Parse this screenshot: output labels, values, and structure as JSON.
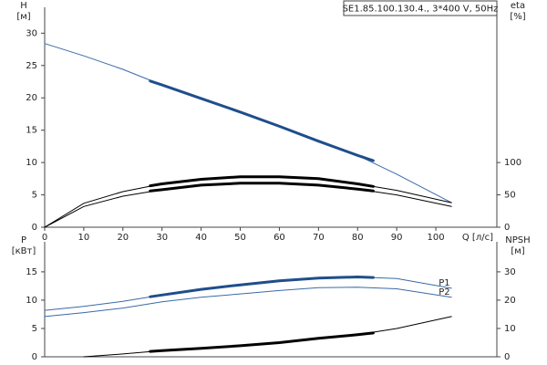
{
  "chart_data": [
    {
      "type": "line",
      "title": "SE1.85.100.130.4., 3*400 V, 50Hz",
      "xlabel": "Q [л/с]",
      "ylabel": "H",
      "ylabel_unit": "[м]",
      "y2label": "eta",
      "y2label_unit": "[%]",
      "xlim": [
        0,
        115.6
      ],
      "xticks": [
        0,
        10,
        20,
        30,
        40,
        50,
        60,
        70,
        80,
        90,
        100
      ],
      "ylim": [
        0,
        34
      ],
      "yticks": [
        0,
        5,
        10,
        15,
        20,
        25,
        30
      ],
      "y2lim": [
        0,
        340
      ],
      "y2ticks": [
        0,
        50,
        100
      ],
      "series": [
        {
          "color": "#3a6aa8",
          "line_width": 1,
          "x": [
            0,
            10,
            20,
            30,
            40,
            50,
            60,
            70,
            80,
            90,
            104
          ],
          "values": [
            28.4,
            26.5,
            24.4,
            22.0,
            19.9,
            17.8,
            15.6,
            13.3,
            11.1,
            8.2,
            3.8
          ]
        },
        {
          "color": "#1f4e8c",
          "line_width": 3,
          "x": [
            27,
            30,
            40,
            50,
            60,
            70,
            80,
            84
          ],
          "values": [
            22.6,
            22.0,
            19.9,
            17.8,
            15.6,
            13.3,
            11.1,
            10.3
          ]
        },
        {
          "color": "#000000",
          "line_width": 1,
          "axis": "y2",
          "x": [
            0,
            10,
            20,
            30,
            40,
            50,
            60,
            70,
            80,
            90,
            104
          ],
          "values": [
            0,
            37,
            55,
            67,
            74,
            78,
            78,
            75,
            67,
            57,
            38
          ]
        },
        {
          "color": "#000000",
          "line_width": 3,
          "axis": "y2",
          "x": [
            27,
            30,
            40,
            50,
            60,
            70,
            80,
            84
          ],
          "values": [
            64,
            67,
            74,
            78,
            78,
            75,
            67,
            63
          ]
        },
        {
          "color": "#000000",
          "line_width": 1,
          "axis": "y2",
          "x": [
            0,
            10,
            20,
            30,
            40,
            50,
            60,
            70,
            80,
            90,
            104
          ],
          "values": [
            0,
            32,
            48,
            58,
            65,
            68,
            68,
            65,
            59,
            50,
            32
          ]
        },
        {
          "color": "#000000",
          "line_width": 3,
          "axis": "y2",
          "x": [
            27,
            30,
            40,
            50,
            60,
            70,
            80,
            84
          ],
          "values": [
            56,
            58,
            65,
            68,
            68,
            65,
            59,
            56
          ]
        }
      ]
    },
    {
      "type": "line",
      "ylabel": "P",
      "ylabel_unit": "[кВт]",
      "y2label": "NPSH",
      "y2label_unit": "[м]",
      "xlim": [
        0,
        115.6
      ],
      "ylim": [
        0,
        20.3
      ],
      "yticks": [
        0,
        5,
        10,
        15
      ],
      "y2lim": [
        0,
        40.6
      ],
      "y2ticks": [
        0,
        10,
        20,
        30
      ],
      "series": [
        {
          "name": "P1",
          "color": "#3a6aa8",
          "line_width": 1,
          "x": [
            0,
            10,
            20,
            30,
            40,
            50,
            60,
            70,
            80,
            90,
            104
          ],
          "values": [
            8.2,
            8.9,
            9.8,
            10.9,
            11.9,
            12.7,
            13.4,
            13.9,
            14.1,
            13.8,
            12.1
          ]
        },
        {
          "color": "#1f4e8c",
          "line_width": 3,
          "x": [
            27,
            30,
            40,
            50,
            60,
            70,
            80,
            84
          ],
          "values": [
            10.6,
            10.9,
            11.9,
            12.7,
            13.4,
            13.9,
            14.1,
            14.0
          ]
        },
        {
          "name": "P2",
          "color": "#3a6aa8",
          "line_width": 1,
          "x": [
            0,
            10,
            20,
            30,
            40,
            50,
            60,
            70,
            80,
            90,
            104
          ],
          "values": [
            7.1,
            7.8,
            8.6,
            9.7,
            10.5,
            11.1,
            11.7,
            12.2,
            12.3,
            12.0,
            10.5
          ]
        },
        {
          "color": "#000000",
          "line_width": 1,
          "axis": "y2",
          "x": [
            10,
            20,
            30,
            40,
            50,
            60,
            70,
            80,
            90,
            104
          ],
          "values": [
            0,
            1.0,
            2.2,
            3.0,
            3.9,
            5.0,
            6.5,
            7.8,
            10.0,
            14.2
          ]
        },
        {
          "color": "#000000",
          "line_width": 3,
          "axis": "y2",
          "x": [
            27,
            30,
            40,
            50,
            60,
            70,
            80,
            84
          ],
          "values": [
            1.9,
            2.2,
            3.0,
            3.9,
            5.0,
            6.5,
            7.8,
            8.4
          ]
        }
      ]
    }
  ]
}
